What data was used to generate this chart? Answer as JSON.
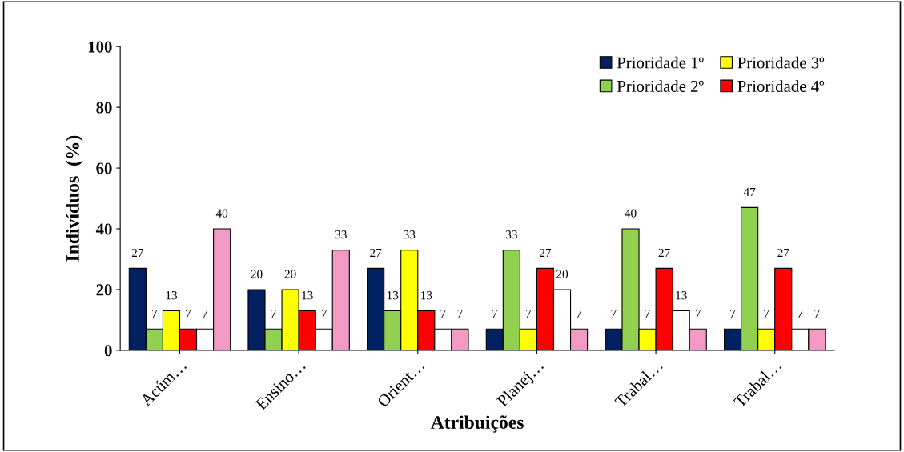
{
  "chart_data": {
    "type": "bar",
    "xlabel": "Atribuições",
    "ylabel": "Indivíduos  (%)",
    "categories": [
      "Acúm…",
      "Ensino…",
      "Orient…",
      "Planej…",
      "Trabal…",
      "Trabal…"
    ],
    "series": [
      {
        "name": "Prioridade 1º",
        "color": "#002060",
        "values": [
          27,
          20,
          27,
          7,
          7,
          7
        ]
      },
      {
        "name": "Prioridade 2º",
        "color": "#92d050",
        "values": [
          7,
          7,
          13,
          33,
          40,
          47
        ]
      },
      {
        "name": "Prioridade 3º",
        "color": "#ffff00",
        "values": [
          13,
          20,
          33,
          7,
          7,
          7
        ]
      },
      {
        "name": "Prioridade 4º",
        "color": "#ff0000",
        "values": [
          7,
          13,
          13,
          27,
          27,
          27
        ]
      },
      {
        "color": "#ffffff",
        "values": [
          7,
          7,
          7,
          20,
          13,
          7
        ]
      },
      {
        "color": "#f29ac4",
        "values": [
          40,
          33,
          7,
          7,
          7,
          7
        ]
      }
    ],
    "ylim": [
      0,
      100
    ],
    "yticks": [
      0,
      20,
      40,
      60,
      80,
      100
    ],
    "grid": false,
    "legend": "top right",
    "data_labels": true
  }
}
